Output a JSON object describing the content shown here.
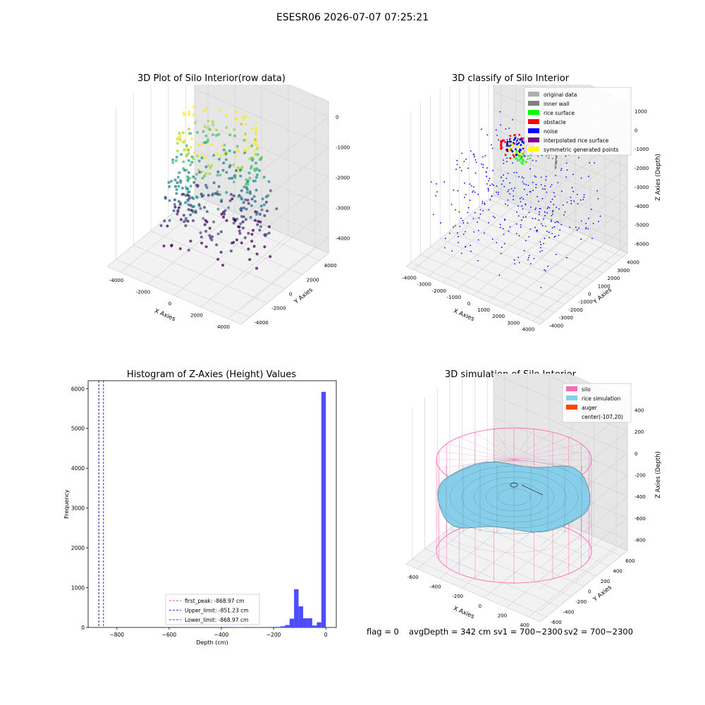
{
  "suptitle": "ESESR06 2026-07-07 07:25:21",
  "status": {
    "flag": "flag = 0",
    "avg_depth": "avgDepth = 342 cm",
    "sv1": "sv1 = 700~2300",
    "sv2": "sv2 = 700~2300"
  },
  "colors": {
    "hist_bar": "#4d4dff",
    "first_peak_line": "#d62728",
    "limit_line": "#0000cc",
    "silo": "#ff69b4",
    "rice": "#87ceeb",
    "auger": "#ff4500",
    "original": "#b0b0b0",
    "inner_wall": "#808080",
    "rice_surface": "#00ff00",
    "obstacle": "#ff0000",
    "noise": "#0000ff",
    "interp": "#800080",
    "symmetric": "#ffff00"
  },
  "chart_data": [
    {
      "id": "raw",
      "type": "scatter",
      "title": "3D Plot of Silo Interior(row data)",
      "xlabel": "X Axies",
      "ylabel": "Y Axies",
      "zlabel": "Z Axies (Depth)",
      "x_ticks": [
        "-4000",
        "-2000",
        "0",
        "2000",
        "4000"
      ],
      "y_ticks": [
        "-4000",
        "-2000",
        "0",
        "2000",
        "4000"
      ],
      "z_ticks": [
        "-4000",
        "-3000",
        "-2000",
        "-1000",
        "0"
      ],
      "xlim": [
        -4500,
        4500
      ],
      "ylim": [
        -4500,
        4500
      ],
      "zlim": [
        -4500,
        0
      ],
      "colormap": "viridis"
    },
    {
      "id": "classify",
      "type": "scatter",
      "title": "3D classify of Silo Interior",
      "xlabel": "X Axies",
      "ylabel": "Y Axies",
      "zlabel": "Z Axies (Depth)",
      "x_ticks": [
        "-4000",
        "-3000",
        "-2000",
        "-1000",
        "0",
        "1000",
        "2000",
        "3000",
        "4000"
      ],
      "y_ticks": [
        "-4000",
        "-3000",
        "-2000",
        "-1000",
        "0",
        "1000",
        "2000",
        "3000",
        "4000"
      ],
      "z_ticks": [
        "-6000",
        "-5000",
        "-4000",
        "-3000",
        "-2000",
        "-1000",
        "0",
        "1000"
      ],
      "xlim": [
        -4500,
        4500
      ],
      "ylim": [
        -4500,
        4500
      ],
      "zlim": [
        -6500,
        1500
      ],
      "legend": [
        {
          "label": "original data",
          "color": "#b0b0b0"
        },
        {
          "label": "inner wall",
          "color": "#808080"
        },
        {
          "label": "rice surface",
          "color": "#00ff00"
        },
        {
          "label": "obstacle",
          "color": "#ff0000"
        },
        {
          "label": "noise",
          "color": "#0000ff"
        },
        {
          "label": "interpolated rice surface",
          "color": "#800080"
        },
        {
          "label": "symmetric generated points",
          "color": "#ffff00"
        }
      ],
      "legend_loc": "upper right"
    },
    {
      "id": "hist",
      "type": "bar",
      "title": "Histogram of Z-Axies (Height) Values",
      "xlabel": "Depth (cm)",
      "ylabel": "Frequency",
      "xlim": [
        -910,
        40
      ],
      "ylim": [
        0,
        6200
      ],
      "x_ticks": [
        -800,
        -600,
        -400,
        -200,
        0
      ],
      "y_ticks": [
        0,
        1000,
        2000,
        3000,
        4000,
        5000,
        6000
      ],
      "bin_width": 17.4,
      "bins": [
        {
          "x": -400,
          "count": 12
        },
        {
          "x": -382.6,
          "count": 10
        },
        {
          "x": -365.2,
          "count": 10
        },
        {
          "x": -347.8,
          "count": 8
        },
        {
          "x": -330.4,
          "count": 8
        },
        {
          "x": -260.8,
          "count": 6
        },
        {
          "x": -243.4,
          "count": 5
        },
        {
          "x": -208.6,
          "count": 12
        },
        {
          "x": -191.2,
          "count": 15
        },
        {
          "x": -173.8,
          "count": 30
        },
        {
          "x": -156.4,
          "count": 60
        },
        {
          "x": -139,
          "count": 220
        },
        {
          "x": -121.6,
          "count": 960
        },
        {
          "x": -104.2,
          "count": 530
        },
        {
          "x": -86.8,
          "count": 230
        },
        {
          "x": -69.4,
          "count": 230
        },
        {
          "x": -52,
          "count": 50
        },
        {
          "x": -34.6,
          "count": 130
        },
        {
          "x": -17.2,
          "count": 5920
        }
      ],
      "lines": [
        {
          "label": "first_peak: -868.97 cm",
          "x": -868.97,
          "color": "#d62728"
        },
        {
          "label": "Upper_limit: -851.23 cm",
          "x": -851.23,
          "color": "#0000cc"
        },
        {
          "label": "Lower_limit: -868.97 cm",
          "x": -868.97,
          "color": "#0000cc"
        }
      ],
      "legend_loc": "lower center"
    },
    {
      "id": "sim",
      "type": "surface",
      "title": "3D simulation of Silo Interior",
      "xlabel": "X Axies",
      "ylabel": "Y Axies",
      "zlabel": "Z Axies (Depth)",
      "x_ticks": [
        "-600",
        "-400",
        "-200",
        "0",
        "200",
        "400"
      ],
      "y_ticks": [
        "-600",
        "-400",
        "-200",
        "0",
        "200",
        "400",
        "600"
      ],
      "z_ticks": [
        "-800",
        "-600",
        "-400",
        "-200",
        "0",
        "200",
        "400"
      ],
      "xlim": [
        -700,
        500
      ],
      "ylim": [
        -700,
        700
      ],
      "zlim": [
        -900,
        450
      ],
      "legend": [
        {
          "label": "silo",
          "color": "#ff69b4"
        },
        {
          "label": "rice simulation",
          "color": "#87ceeb"
        },
        {
          "label": "auger",
          "color": "#ff4500"
        },
        {
          "label": "center(-107,20)",
          "color": ""
        }
      ],
      "legend_loc": "upper right"
    }
  ]
}
